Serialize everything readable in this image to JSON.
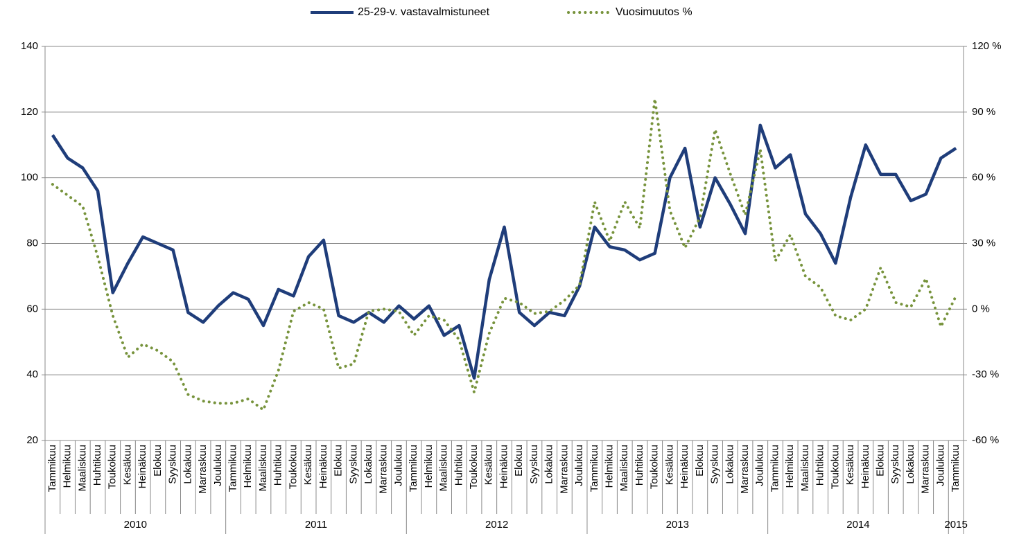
{
  "chart_data": {
    "type": "line",
    "categories": [
      "Tammikuu",
      "Helmikuu",
      "Maaliskuu",
      "Huhtikuu",
      "Toukokuu",
      "Kesäkuu",
      "Heinäkuu",
      "Elokuu",
      "Syyskuu",
      "Lokakuu",
      "Marraskuu",
      "Joulukuu",
      "Tammikuu",
      "Helmikuu",
      "Maaliskuu",
      "Huhtikuu",
      "Toukokuu",
      "Kesäkuu",
      "Heinäkuu",
      "Elokuu",
      "Syyskuu",
      "Lokakuu",
      "Marraskuu",
      "Joulukuu",
      "Tammikuu",
      "Helmikuu",
      "Maaliskuu",
      "Huhtikuu",
      "Toukokuu",
      "Kesäkuu",
      "Heinäkuu",
      "Elokuu",
      "Syyskuu",
      "Lokakuu",
      "Marraskuu",
      "Joulukuu",
      "Tammikuu",
      "Helmikuu",
      "Maaliskuu",
      "Huhtikuu",
      "Toukokuu",
      "Kesäkuu",
      "Heinäkuu",
      "Elokuu",
      "Syyskuu",
      "Lokakuu",
      "Marraskuu",
      "Joulukuu",
      "Tammikuu",
      "Helmikuu",
      "Maaliskuu",
      "Huhtikuu",
      "Toukokuu",
      "Kesäkuu",
      "Heinäkuu",
      "Elokuu",
      "Syyskuu",
      "Lokakuu",
      "Marraskuu",
      "Joulukuu",
      "Tammikuu"
    ],
    "year_labels": [
      "2010",
      null,
      null,
      null,
      null,
      null,
      null,
      null,
      null,
      null,
      null,
      null,
      "2011",
      null,
      null,
      null,
      null,
      null,
      null,
      null,
      null,
      null,
      null,
      null,
      "2012",
      null,
      null,
      null,
      null,
      null,
      null,
      null,
      null,
      null,
      null,
      null,
      "2013",
      null,
      null,
      null,
      null,
      null,
      null,
      null,
      null,
      null,
      null,
      null,
      "2014",
      null,
      null,
      null,
      null,
      null,
      null,
      null,
      null,
      null,
      null,
      null,
      "2015"
    ],
    "series": [
      {
        "name": "25-29-v. vastavalmistuneet",
        "color": "#1f3d7a",
        "style": "solid",
        "values": [
          113,
          106,
          103,
          96,
          65,
          74,
          82,
          80,
          78,
          59,
          56,
          61,
          65,
          63,
          55,
          66,
          64,
          76,
          81,
          58,
          56,
          59,
          56,
          61,
          57,
          61,
          52,
          55,
          39,
          69,
          85,
          59,
          55,
          59,
          58,
          67,
          85,
          79,
          78,
          75,
          77,
          100,
          109,
          85,
          100,
          92,
          83,
          116,
          103,
          107,
          89,
          83,
          74,
          94,
          110,
          101,
          101,
          93,
          95,
          106,
          109
        ]
      },
      {
        "name": "Vuosimuutos %",
        "color": "#77933c",
        "style": "dotted",
        "axis": "y2",
        "values": [
          57,
          52,
          47,
          24,
          -3,
          -22,
          -16,
          -19,
          -24,
          -39,
          -42,
          -43,
          -43,
          -41,
          -46,
          -28,
          -1,
          3,
          0,
          -27,
          -25,
          -1,
          0,
          -1,
          -12,
          -3,
          -5,
          -14,
          -38,
          -11,
          5,
          3,
          -2,
          -1,
          4,
          11,
          49,
          31,
          49,
          37,
          96,
          45,
          28,
          42,
          82,
          62,
          43,
          73,
          22,
          34,
          15,
          10,
          -3,
          -5,
          0,
          19,
          3,
          1,
          14,
          -8,
          6
        ]
      }
    ],
    "ylim": [
      20,
      140
    ],
    "yticks": [
      20,
      40,
      60,
      80,
      100,
      120,
      140
    ],
    "y2lim": [
      -60,
      120
    ],
    "y2ticks": [
      {
        "value": -60,
        "label": "-60 %"
      },
      {
        "value": -30,
        "label": "-30 %"
      },
      {
        "value": 0,
        "label": "0 %"
      },
      {
        "value": 30,
        "label": "30 %"
      },
      {
        "value": 60,
        "label": "60 %"
      },
      {
        "value": 90,
        "label": "90 %"
      },
      {
        "value": 120,
        "label": "120 %"
      }
    ],
    "grid": true,
    "legend": "top"
  }
}
